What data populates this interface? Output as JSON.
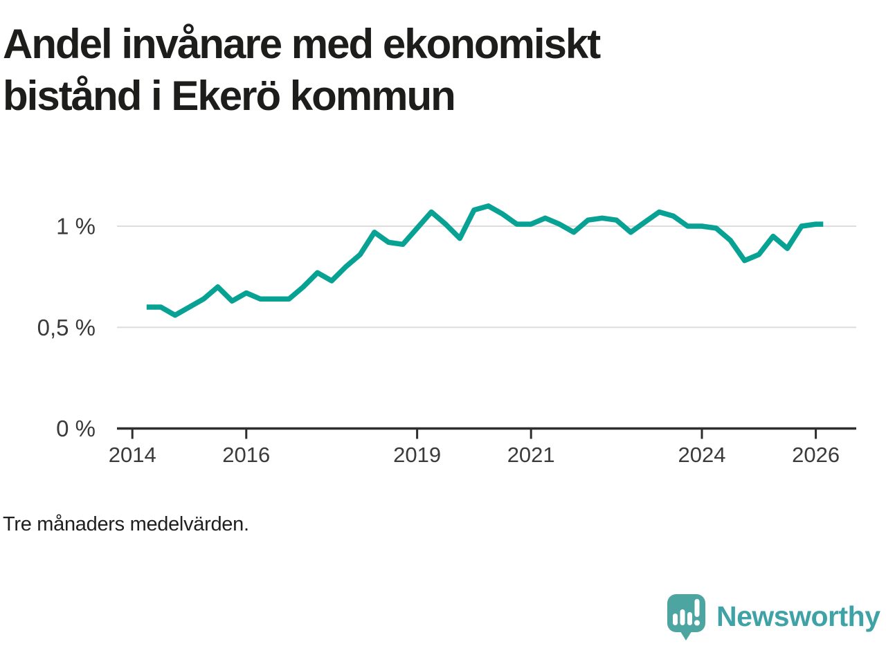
{
  "header": {
    "title": "Andel invånare med ekonomiskt bistånd i Ekerö kommun"
  },
  "footer": {
    "note": "Tre månaders medelvärden.",
    "brand": "Newsworthy"
  },
  "colors": {
    "line": "#08a294",
    "grid": "#dddddd",
    "axis": "#2e2e2e",
    "label": "#3a3a3a",
    "title": "#1d1d1b",
    "logo_mark": "#4ca5a0",
    "logo_text": "#3fa2a6"
  },
  "chart_data": {
    "type": "line",
    "title": "Andel invånare med ekonomiskt bistånd i Ekerö kommun",
    "subtitle": "Tre månaders medelvärden.",
    "xlabel": "",
    "ylabel": "",
    "unit": "%",
    "grid": "horizontal",
    "legend": "none",
    "xlim": [
      2013.73,
      2026.71
    ],
    "ylim": [
      0,
      1.15
    ],
    "yticks": [
      {
        "value": 0,
        "label": "0 %"
      },
      {
        "value": 0.5,
        "label": "0,5 %"
      },
      {
        "value": 1,
        "label": "1 %"
      }
    ],
    "xticks": [
      {
        "value": 2014,
        "label": "2014"
      },
      {
        "value": 2016,
        "label": "2016"
      },
      {
        "value": 2019,
        "label": "2019"
      },
      {
        "value": 2021,
        "label": "2021"
      },
      {
        "value": 2024,
        "label": "2024"
      },
      {
        "value": 2026,
        "label": "2026"
      }
    ],
    "x": [
      2014.25,
      2014.5,
      2014.75,
      2015,
      2015.25,
      2015.5,
      2015.75,
      2016,
      2016.25,
      2016.5,
      2016.75,
      2017,
      2017.25,
      2017.5,
      2017.75,
      2018,
      2018.25,
      2018.5,
      2018.75,
      2019,
      2019.25,
      2019.5,
      2019.75,
      2020,
      2020.25,
      2020.5,
      2020.75,
      2021,
      2021.25,
      2021.5,
      2021.75,
      2022,
      2022.25,
      2022.5,
      2022.75,
      2023,
      2023.25,
      2023.5,
      2023.75,
      2024,
      2024.25,
      2024.5,
      2024.75,
      2025,
      2025.25,
      2025.5,
      2025.75,
      2026,
      2026.13
    ],
    "values": [
      0.6,
      0.6,
      0.56,
      0.6,
      0.64,
      0.7,
      0.63,
      0.67,
      0.64,
      0.64,
      0.64,
      0.7,
      0.77,
      0.73,
      0.8,
      0.86,
      0.97,
      0.92,
      0.91,
      0.99,
      1.07,
      1.01,
      0.94,
      1.08,
      1.1,
      1.06,
      1.01,
      1.01,
      1.04,
      1.01,
      0.97,
      1.03,
      1.04,
      1.03,
      0.97,
      1.02,
      1.07,
      1.05,
      1.0,
      1.0,
      0.99,
      0.93,
      0.83,
      0.86,
      0.95,
      0.89,
      1.0,
      1.01,
      1.01
    ]
  }
}
